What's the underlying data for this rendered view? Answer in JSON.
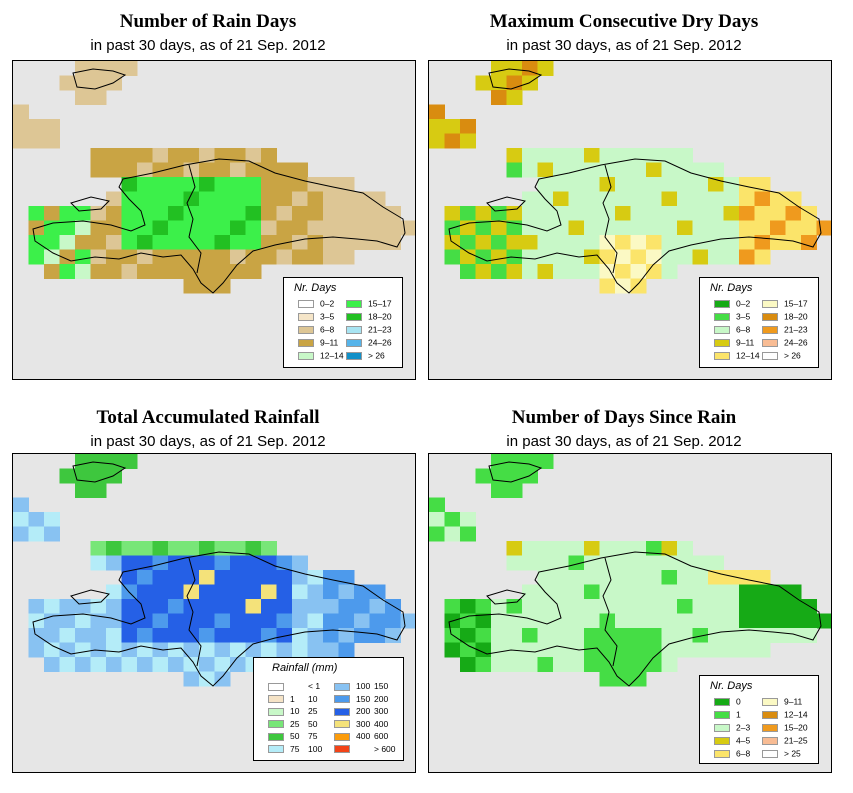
{
  "panels": [
    {
      "title": "Number of Rain Days",
      "subtitle": "in past 30 days, as of  21 Sep. 2012",
      "legend": {
        "title": "Nr. Days",
        "items": [
          {
            "label": "0–2",
            "color": "#ffffff"
          },
          {
            "label": "3–5",
            "color": "#f5e5c8"
          },
          {
            "label": "6–8",
            "color": "#ddc695"
          },
          {
            "label": "9–11",
            "color": "#c9a444"
          },
          {
            "label": "12–14",
            "color": "#c8f8c8"
          },
          {
            "label": "15–17",
            "color": "#3cf04a"
          },
          {
            "label": "18–20",
            "color": "#22c022"
          },
          {
            "label": "21–23",
            "color": "#a8e4f2"
          },
          {
            "label": "24–26",
            "color": "#56b4ea"
          },
          {
            "label": "> 26",
            "color": "#1190c8"
          }
        ]
      }
    },
    {
      "title": "Maximum Consecutive Dry Days",
      "subtitle": "in past 30 days, as of  21 Sep. 2012",
      "legend": {
        "title": "Nr. Days",
        "items": [
          {
            "label": "0–2",
            "color": "#16aa16"
          },
          {
            "label": "3–5",
            "color": "#45dd45"
          },
          {
            "label": "6–8",
            "color": "#c8f8c8"
          },
          {
            "label": "9–11",
            "color": "#d7cb12"
          },
          {
            "label": "12–14",
            "color": "#fbe46a"
          },
          {
            "label": "15–17",
            "color": "#fbf9c4"
          },
          {
            "label": "18–20",
            "color": "#d98c10"
          },
          {
            "label": "21–23",
            "color": "#ef9a1e"
          },
          {
            "label": "24–26",
            "color": "#f8bc94"
          },
          {
            "label": "> 26",
            "color": "#ffffff"
          }
        ]
      }
    },
    {
      "title": "Total Accumulated Rainfall",
      "subtitle": "in past 30 days, as of  21 Sep. 2012",
      "legend": {
        "title": "Rainfall (mm)",
        "items": [
          {
            "lo": "",
            "hi": "< 1",
            "color": "#ffffff"
          },
          {
            "lo": "1",
            "hi": "10",
            "color": "#f5e3c6"
          },
          {
            "lo": "10",
            "hi": "25",
            "color": "#c8f8c8"
          },
          {
            "lo": "25",
            "hi": "50",
            "color": "#78e678"
          },
          {
            "lo": "50",
            "hi": "75",
            "color": "#3ec73e"
          },
          {
            "lo": "75",
            "hi": "100",
            "color": "#b4ecf8"
          },
          {
            "lo": "100",
            "hi": "150",
            "color": "#88c2f2"
          },
          {
            "lo": "150",
            "hi": "200",
            "color": "#4d9aec"
          },
          {
            "lo": "200",
            "hi": "300",
            "color": "#2560e6"
          },
          {
            "lo": "300",
            "hi": "400",
            "color": "#f4e27a"
          },
          {
            "lo": "400",
            "hi": "600",
            "color": "#fb9c0c"
          },
          {
            "lo": "",
            "hi": "> 600",
            "color": "#f24418"
          }
        ]
      }
    },
    {
      "title": "Number of Days Since Rain",
      "subtitle": "in past 30 days, as of  21 Sep. 2012",
      "legend": {
        "title": "Nr. Days",
        "items": [
          {
            "label": "0",
            "color": "#16aa16"
          },
          {
            "label": "1",
            "color": "#45dd45"
          },
          {
            "label": "2–3",
            "color": "#c8f8c8"
          },
          {
            "label": "4–5",
            "color": "#d7cb12"
          },
          {
            "label": "6–8",
            "color": "#fbe46a"
          },
          {
            "label": "9–11",
            "color": "#fbf9c4"
          },
          {
            "label": "12–14",
            "color": "#d98c10"
          },
          {
            "label": "15–20",
            "color": "#ef9a1e"
          },
          {
            "label": "21–25",
            "color": "#f8bc94"
          },
          {
            "label": "> 25",
            "color": "#ffffff"
          }
        ]
      }
    }
  ]
}
